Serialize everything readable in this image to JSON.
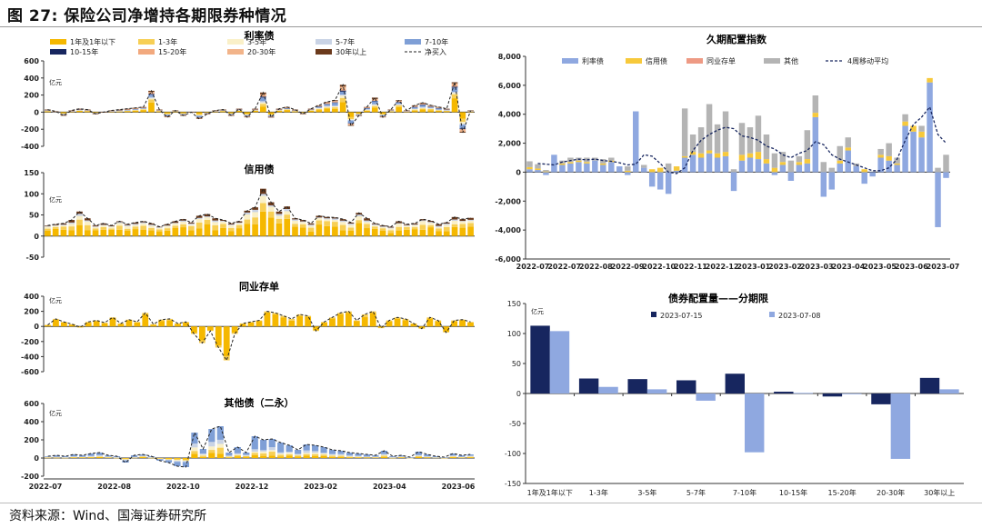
{
  "figure_title": "图 27:  保险公司净增持各期限券种情况",
  "source": "资料来源：Wind、国海证券研究所",
  "colors": {
    "y1": "#f5b800",
    "y2": "#f7cf55",
    "y3": "#faf0c8",
    "lb": "#c9d3e5",
    "blue": "#7f9fd6",
    "navy": "#17265f",
    "salmon": "#f2a97e",
    "tan": "#f2b48a",
    "brown": "#6b3a1c",
    "gray": "#b4b4b4",
    "yellow": "#f7c93b",
    "pink": "#ee9a84",
    "lightblue": "#8fa8e0"
  },
  "chart_data": [
    {
      "id": "rate-bonds",
      "type": "bar",
      "stacked": true,
      "title": "利率债",
      "unit": "亿元",
      "ylim": [
        -400,
        600
      ],
      "yticks": [
        -400,
        -200,
        0,
        200,
        400,
        600
      ],
      "legend": [
        "1年及1年以下",
        "1-3年",
        "3-5年",
        "5-7年",
        "7-10年",
        "10-15年",
        "15-20年",
        "20-30年",
        "30年以上",
        "净买入"
      ],
      "series_colors": [
        "#f5b800",
        "#f7cf55",
        "#faf0c8",
        "#c9d3e5",
        "#7f9fd6",
        "#17265f",
        "#f2a97e",
        "#f2b48a",
        "#6b3a1c"
      ],
      "net": [
        30,
        10,
        -40,
        20,
        40,
        30,
        -20,
        0,
        20,
        30,
        40,
        50,
        60,
        250,
        30,
        -60,
        20,
        -40,
        0,
        -80,
        -20,
        20,
        30,
        -40,
        40,
        -60,
        40,
        230,
        -60,
        40,
        60,
        30,
        -20,
        40,
        80,
        120,
        140,
        320,
        -160,
        -40,
        60,
        170,
        -60,
        30,
        140,
        20,
        80,
        110,
        80,
        60,
        40,
        350,
        -240,
        20
      ],
      "xtick_labels": [
        "2022-07",
        "2022-08",
        "2022-10",
        "2022-12",
        "2023-02",
        "2023-04",
        "2023-06"
      ]
    },
    {
      "id": "credit-bonds",
      "type": "bar",
      "stacked": true,
      "title": "信用债",
      "ylim": [
        -50,
        150
      ],
      "yticks": [
        -50,
        0,
        50,
        100,
        150
      ],
      "net": [
        25,
        28,
        30,
        38,
        58,
        42,
        25,
        30,
        25,
        35,
        28,
        32,
        35,
        30,
        22,
        28,
        35,
        40,
        32,
        48,
        52,
        42,
        38,
        30,
        35,
        60,
        68,
        112,
        80,
        58,
        70,
        42,
        38,
        30,
        48,
        45,
        44,
        40,
        32,
        55,
        42,
        30,
        25,
        22,
        35,
        28,
        30,
        40,
        36,
        28,
        32,
        45,
        40,
        43
      ]
    },
    {
      "id": "ncd",
      "type": "bar",
      "stacked": true,
      "title": "同业存单",
      "ylim": [
        -600,
        400
      ],
      "yticks": [
        -600,
        -400,
        -200,
        0,
        200,
        400
      ],
      "net": [
        20,
        100,
        60,
        30,
        -10,
        60,
        80,
        50,
        120,
        40,
        90,
        60,
        180,
        30,
        90,
        100,
        40,
        60,
        -100,
        -220,
        -60,
        -280,
        -450,
        -100,
        40,
        60,
        80,
        200,
        180,
        140,
        100,
        160,
        140,
        -60,
        60,
        120,
        180,
        200,
        80,
        160,
        200,
        -20,
        80,
        120,
        100,
        40,
        -30,
        120,
        80,
        -80,
        80,
        90,
        60
      ]
    },
    {
      "id": "other-bonds",
      "type": "bar",
      "stacked": true,
      "title": "其他债（二永）",
      "ylim": [
        -200,
        600
      ],
      "yticks": [
        -200,
        0,
        200,
        400,
        600
      ],
      "net": [
        20,
        30,
        20,
        40,
        30,
        50,
        60,
        30,
        20,
        -50,
        30,
        40,
        20,
        -30,
        -50,
        -90,
        -100,
        280,
        100,
        320,
        350,
        60,
        120,
        60,
        240,
        200,
        210,
        170,
        140,
        90,
        150,
        140,
        120,
        90,
        80,
        60,
        50,
        40,
        30,
        80,
        20,
        30,
        10,
        70,
        40,
        20,
        10,
        50,
        30,
        40
      ]
    },
    {
      "id": "duration-index",
      "type": "bar",
      "stacked": true,
      "title": "久期配置指数",
      "ylim": [
        -6000,
        8000
      ],
      "yticks": [
        -6000,
        -4000,
        -2000,
        0,
        2000,
        4000,
        6000,
        8000
      ],
      "legend": [
        "利率债",
        "信用债",
        "同业存单",
        "其他",
        "4周移动平均"
      ],
      "xtick_labels": [
        "2022-07",
        "2022-07",
        "2022-08",
        "2022-09",
        "2022-10",
        "2022-11",
        "2022-12",
        "2023-01",
        "2023-02",
        "2023-03",
        "2023-04",
        "2023-05",
        "2023-06",
        "2023-07"
      ],
      "values": [
        [
          200,
          150,
          0,
          400
        ],
        [
          150,
          100,
          0,
          300
        ],
        [
          -200,
          50,
          0,
          100
        ],
        [
          1200,
          0,
          0,
          0
        ],
        [
          500,
          100,
          0,
          200
        ],
        [
          600,
          100,
          0,
          300
        ],
        [
          700,
          100,
          0,
          200
        ],
        [
          600,
          100,
          0,
          300
        ],
        [
          800,
          0,
          0,
          200
        ],
        [
          500,
          100,
          0,
          300
        ],
        [
          700,
          100,
          0,
          200
        ],
        [
          400,
          0,
          0,
          0
        ],
        [
          -200,
          100,
          0,
          300
        ],
        [
          4200,
          0,
          0,
          0
        ],
        [
          300,
          0,
          0,
          200
        ],
        [
          -1000,
          200,
          0,
          0
        ],
        [
          -1200,
          300,
          0,
          0
        ],
        [
          -1500,
          0,
          0,
          600
        ],
        [
          100,
          300,
          0,
          0
        ],
        [
          1000,
          100,
          0,
          3300
        ],
        [
          1200,
          200,
          0,
          1200
        ],
        [
          1000,
          300,
          0,
          1800
        ],
        [
          1300,
          200,
          0,
          3200
        ],
        [
          1000,
          300,
          0,
          2000
        ],
        [
          1100,
          300,
          0,
          2800
        ],
        [
          -1300,
          0,
          0,
          200
        ],
        [
          800,
          400,
          0,
          2200
        ],
        [
          1000,
          300,
          0,
          1800
        ],
        [
          900,
          500,
          0,
          2500
        ],
        [
          600,
          300,
          0,
          1700
        ],
        [
          -200,
          300,
          0,
          1000
        ],
        [
          500,
          200,
          0,
          700
        ],
        [
          -600,
          0,
          0,
          800
        ],
        [
          500,
          200,
          0,
          400
        ],
        [
          600,
          300,
          0,
          2000
        ],
        [
          3800,
          300,
          0,
          1200
        ],
        [
          -1700,
          0,
          0,
          700
        ],
        [
          -1200,
          0,
          0,
          300
        ],
        [
          600,
          200,
          0,
          1000
        ],
        [
          1500,
          200,
          0,
          700
        ],
        [
          400,
          0,
          0,
          200
        ],
        [
          -800,
          200,
          0,
          0
        ],
        [
          -300,
          0,
          0,
          0
        ],
        [
          1000,
          200,
          0,
          400
        ],
        [
          800,
          300,
          0,
          900
        ],
        [
          500,
          100,
          0,
          400
        ],
        [
          3200,
          300,
          0,
          500
        ],
        [
          2800,
          400,
          0,
          0
        ],
        [
          2400,
          400,
          0,
          400
        ],
        [
          6200,
          300,
          0,
          0
        ],
        [
          -3800,
          0,
          0,
          300
        ],
        [
          -400,
          0,
          0,
          1200
        ]
      ],
      "ma": [
        600,
        550,
        500,
        700,
        800,
        900,
        850,
        900,
        800,
        750,
        650,
        500,
        550,
        1200,
        1100,
        600,
        0,
        -100,
        300,
        1500,
        2200,
        2600,
        2900,
        3100,
        3000,
        2500,
        2400,
        2200,
        1800,
        1600,
        1200,
        1000,
        1300,
        1500,
        2100,
        1900,
        1200,
        900,
        700,
        500,
        300,
        100,
        100,
        300,
        900,
        2200,
        3300,
        3800,
        4500,
        2600,
        2000
      ]
    },
    {
      "id": "allocation-by-term",
      "type": "bar",
      "title": "债券配置量——分期限",
      "unit": "亿元",
      "ylim": [
        -150,
        150
      ],
      "yticks": [
        -150,
        -100,
        -50,
        0,
        50,
        100,
        150
      ],
      "categories": [
        "1年及1年以下",
        "1-3年",
        "3-5年",
        "5-7年",
        "7-10年",
        "10-15年",
        "15-20年",
        "20-30年",
        "30年以上"
      ],
      "series": [
        {
          "name": "2023-07-15",
          "color": "#17265f",
          "values": [
            113,
            25,
            24,
            22,
            33,
            3,
            -5,
            -18,
            26
          ]
        },
        {
          "name": "2023-07-08",
          "color": "#8fa8e0",
          "values": [
            104,
            11,
            7,
            -12,
            -98,
            1,
            0,
            -109,
            7
          ]
        }
      ]
    }
  ]
}
